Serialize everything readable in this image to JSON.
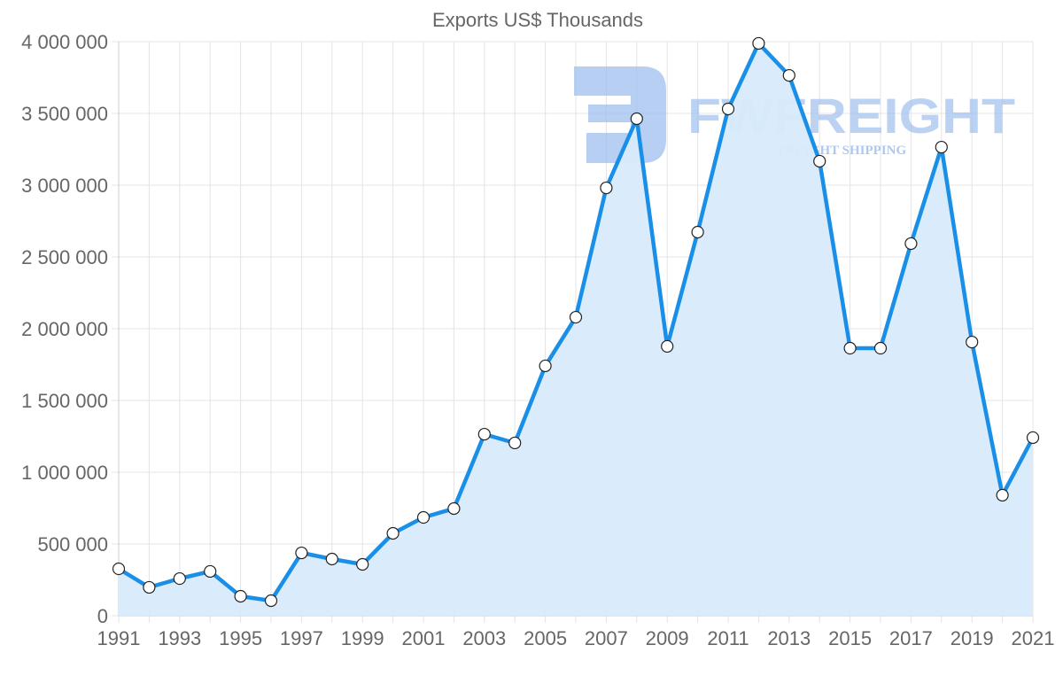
{
  "chart_data": {
    "type": "line",
    "title": "Exports US$ Thousands",
    "xlabel": "",
    "ylabel": "",
    "ylim": [
      0,
      4000000
    ],
    "yticks": [
      0,
      500000,
      1000000,
      1500000,
      2000000,
      2500000,
      3000000,
      3500000,
      4000000
    ],
    "ytick_labels": [
      "0",
      "500 000",
      "1 000 000",
      "1 500 000",
      "2 000 000",
      "2 500 000",
      "3 000 000",
      "3 500 000",
      "4 000 000"
    ],
    "x": [
      1991,
      1992,
      1993,
      1994,
      1995,
      1996,
      1997,
      1998,
      1999,
      2000,
      2001,
      2002,
      2003,
      2004,
      2005,
      2006,
      2007,
      2008,
      2009,
      2010,
      2011,
      2012,
      2013,
      2014,
      2015,
      2016,
      2017,
      2018,
      2019,
      2020,
      2021
    ],
    "xtick_labels": [
      "1991",
      "1993",
      "1995",
      "1997",
      "1999",
      "2001",
      "2003",
      "2005",
      "2007",
      "2009",
      "2011",
      "2013",
      "2015",
      "2017",
      "2019",
      "2021"
    ],
    "series": [
      {
        "name": "Exports US$ Thousands",
        "values": [
          327000,
          198000,
          259000,
          309000,
          136000,
          105000,
          438000,
          395000,
          358000,
          574000,
          685000,
          747000,
          1265000,
          1204000,
          1741000,
          2080000,
          2981000,
          3463000,
          1877000,
          2673000,
          3531000,
          3988000,
          3765000,
          3167000,
          1864000,
          1864000,
          2593000,
          3265000,
          1907000,
          840000,
          1241000
        ]
      }
    ],
    "grid": true,
    "legend": "none",
    "filled_area": true
  },
  "colors": {
    "line": "#1a8fe8",
    "fill": "#d8ebfb",
    "grid": "#e4e4e4",
    "text": "#666666",
    "point_fill": "#ffffff",
    "point_stroke": "#222222",
    "watermark": "#9fbfef"
  },
  "watermark": {
    "brand": "FWFREIGHT",
    "tagline": "FREIGHT SHIPPING"
  }
}
